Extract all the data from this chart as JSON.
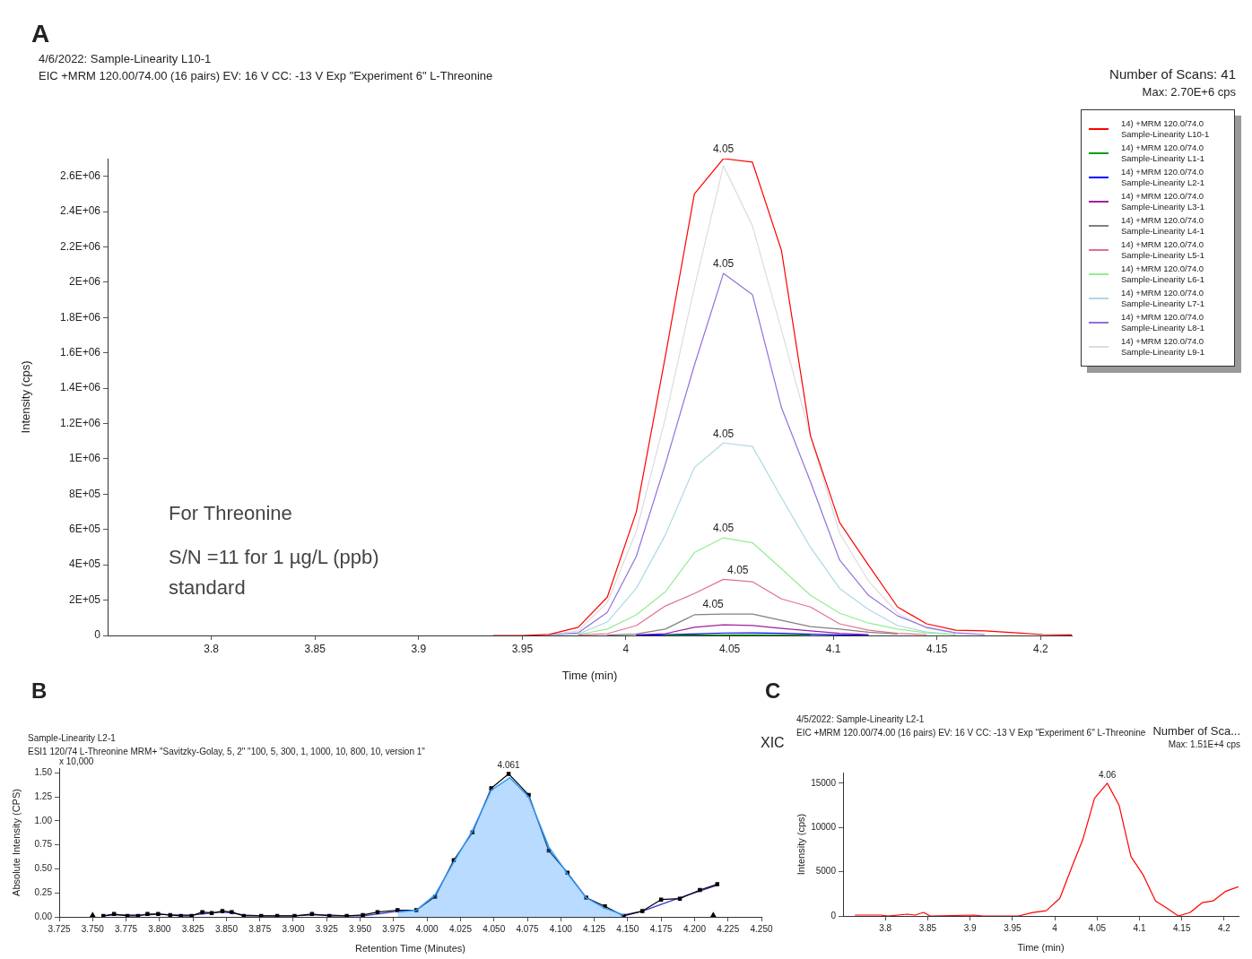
{
  "chart_data": [
    {
      "type": "line",
      "title": "4/6/2022: Sample-Linearity L10-1",
      "subtitle": "EIC +MRM 120.00/74.00 (16 pairs) EV: 16 V CC: -13 V Exp \"Experiment 6\" L-Threonine",
      "xlabel": "Time (min)",
      "ylabel": "Intensity (cps)",
      "legend": "top right",
      "annotations": [
        "A",
        "Number of Scans: 41",
        "Max: 2.70E+6 cps",
        "For Threonine",
        "S/N =11 for 1 µg/L (ppb) standard",
        {
          "text": "4.05",
          "x": 4.047,
          "y": 2700000
        },
        {
          "text": "4.05",
          "x": 4.047,
          "y": 2050000
        },
        {
          "text": "4.05",
          "x": 4.047,
          "y": 1090000
        },
        {
          "text": "4.05",
          "x": 4.047,
          "y": 553000
        },
        {
          "text": "4.05",
          "x": 4.054,
          "y": 318000
        },
        {
          "text": "4.05",
          "x": 4.042,
          "y": 121000
        }
      ],
      "x": [
        3.936,
        3.95,
        3.963,
        3.977,
        3.991,
        4.005,
        4.019,
        4.033,
        4.047,
        4.061,
        4.075,
        4.089,
        4.103,
        4.117,
        4.131,
        4.145,
        4.159,
        4.173,
        4.187,
        4.201,
        4.215
      ],
      "xlim": [
        3.75,
        4.215
      ],
      "xticks": [
        3.8,
        3.85,
        3.9,
        3.95,
        4,
        4.05,
        4.1,
        4.15,
        4.2
      ],
      "ylim": [
        0,
        2700000
      ],
      "yticks": [
        0,
        {
          "value": 200000,
          "label": "2E+05"
        },
        {
          "value": 400000,
          "label": "4E+05"
        },
        {
          "value": 600000,
          "label": "6E+05"
        },
        {
          "value": 800000,
          "label": "8E+05"
        },
        {
          "value": 1000000,
          "label": "1E+06"
        },
        {
          "value": 1200000,
          "label": "1.2E+06"
        },
        {
          "value": 1400000,
          "label": "1.4E+06"
        },
        {
          "value": 1600000,
          "label": "1.6E+06"
        },
        {
          "value": 1800000,
          "label": "1.8E+06"
        },
        {
          "value": 2000000,
          "label": "2E+06"
        },
        {
          "value": 2200000,
          "label": "2.2E+06"
        },
        {
          "value": 2400000,
          "label": "2.4E+06"
        },
        {
          "value": 2600000,
          "label": "2.6E+06"
        }
      ],
      "series": [
        {
          "name": "14) +MRM 120.0/74.0\nSample-Linearity L10-1",
          "color": "#ff0000",
          "values": [
            0,
            0,
            6000,
            46000,
            217000,
            700000,
            1580000,
            2500000,
            2700000,
            2680000,
            2180000,
            1130000,
            640000,
            398000,
            161000,
            66000,
            30000,
            26000,
            16000,
            5000,
            3000
          ]
        },
        {
          "name": "14) +MRM 120.0/74.0\nSample-Linearity L1-1",
          "color": "#00a000",
          "values": [
            null,
            null,
            null,
            null,
            null,
            null,
            1000,
            2000,
            3000,
            3000,
            2000,
            1000,
            null,
            null,
            null,
            null,
            null,
            null,
            null,
            null,
            null
          ]
        },
        {
          "name": "14) +MRM 120.0/74.0\nSample-Linearity L2-1",
          "color": "#0000ff",
          "values": [
            null,
            null,
            null,
            null,
            null,
            1000,
            4000,
            8000,
            14000,
            15000,
            12000,
            7000,
            3000,
            1000,
            null,
            null,
            null,
            null,
            null,
            null,
            null
          ]
        },
        {
          "name": "14) +MRM 120.0/74.0\nSample-Linearity L3-1",
          "color": "#a020a0",
          "values": [
            null,
            null,
            null,
            null,
            null,
            3000,
            10000,
            46000,
            60000,
            56000,
            40000,
            26000,
            12000,
            5000,
            null,
            null,
            null,
            null,
            null,
            null,
            null
          ]
        },
        {
          "name": "14) +MRM 120.0/74.0\nSample-Linearity L4-1",
          "color": "#808080",
          "values": [
            null,
            null,
            null,
            null,
            2000,
            8000,
            36000,
            117000,
            121000,
            121000,
            86000,
            50000,
            36000,
            18000,
            8000,
            null,
            null,
            null,
            null,
            null,
            null
          ]
        },
        {
          "name": "14) +MRM 120.0/74.0\nSample-Linearity L5-1",
          "color": "#e07090",
          "values": [
            null,
            null,
            null,
            3000,
            10000,
            56000,
            167000,
            237000,
            318000,
            304000,
            207000,
            161000,
            66000,
            30000,
            12000,
            5000,
            null,
            null,
            null,
            null,
            null
          ]
        },
        {
          "name": "14) +MRM 120.0/74.0\nSample-Linearity L6-1",
          "color": "#90ee90",
          "values": [
            null,
            null,
            null,
            5000,
            36000,
            117000,
            247000,
            469000,
            553000,
            525000,
            378000,
            227000,
            127000,
            70000,
            36000,
            15000,
            5000,
            null,
            null,
            null,
            null
          ]
        },
        {
          "name": "14) +MRM 120.0/74.0\nSample-Linearity L7-1",
          "color": "#add8e6",
          "values": [
            null,
            null,
            2000,
            8000,
            76000,
            267000,
            569000,
            951000,
            1090000,
            1070000,
            780000,
            499000,
            267000,
            147000,
            56000,
            20000,
            6000,
            null,
            null,
            null,
            null
          ]
        },
        {
          "name": "14) +MRM 120.0/74.0\nSample-Linearity L8-1",
          "color": "#9370db",
          "values": [
            null,
            null,
            3000,
            15000,
            131000,
            448000,
            970000,
            1530000,
            2050000,
            1930000,
            1290000,
            870000,
            428000,
            227000,
            111000,
            46000,
            15000,
            5000,
            null,
            null,
            null
          ]
        },
        {
          "name": "14) +MRM 120.0/74.0\nSample-Linearity L9-1",
          "color": "#dcdcdc",
          "values": [
            null,
            null,
            5000,
            26000,
            187000,
            590000,
            1230000,
            1970000,
            2660000,
            2320000,
            1730000,
            1130000,
            580000,
            308000,
            127000,
            40000,
            15000,
            5000,
            null,
            null,
            null
          ]
        }
      ]
    },
    {
      "type": "line",
      "title": "Sample-Linearity L2-1",
      "subtitle": "ESI1 120/74 L-Threonine MRM+ \"Savitzky-Golay, 5, 2\" \"100, 5, 300, 1, 1000, 10, 800, 10, version 1\"",
      "xlabel": "Retention Time (Minutes)",
      "ylabel": "Absolute Intensity (CPS)",
      "annotations": [
        "B",
        "x 10,000",
        {
          "text": "4.061",
          "x": 4.061,
          "y": 1.49
        }
      ],
      "xlim": [
        3.725,
        4.25
      ],
      "xticks": [
        {
          "value": 3.725,
          "label": "3.725"
        },
        {
          "value": 3.75,
          "label": "3.750"
        },
        {
          "value": 3.775,
          "label": "3.775"
        },
        {
          "value": 3.8,
          "label": "3.800"
        },
        {
          "value": 3.825,
          "label": "3.825"
        },
        {
          "value": 3.85,
          "label": "3.850"
        },
        {
          "value": 3.875,
          "label": "3.875"
        },
        {
          "value": 3.9,
          "label": "3.900"
        },
        {
          "value": 3.925,
          "label": "3.925"
        },
        {
          "value": 3.95,
          "label": "3.950"
        },
        {
          "value": 3.975,
          "label": "3.975"
        },
        {
          "value": 4,
          "label": "4.000"
        },
        {
          "value": 4.025,
          "label": "4.025"
        },
        {
          "value": 4.05,
          "label": "4.050"
        },
        {
          "value": 4.075,
          "label": "4.075"
        },
        {
          "value": 4.1,
          "label": "4.100"
        },
        {
          "value": 4.125,
          "label": "4.125"
        },
        {
          "value": 4.15,
          "label": "4.150"
        },
        {
          "value": 4.175,
          "label": "4.175"
        },
        {
          "value": 4.2,
          "label": "4.200"
        },
        {
          "value": 4.225,
          "label": "4.225"
        },
        {
          "value": 4.25,
          "label": "4.250"
        }
      ],
      "ylim": [
        0,
        1.55
      ],
      "yticks": [
        {
          "value": 0,
          "label": "0.00"
        },
        {
          "value": 0.25,
          "label": "0.25"
        },
        {
          "value": 0.5,
          "label": "0.50"
        },
        {
          "value": 0.75,
          "label": "0.75"
        },
        {
          "value": 1,
          "label": "1.00"
        },
        {
          "value": 1.25,
          "label": "1.25"
        },
        {
          "value": 1.5,
          "label": "1.50"
        }
      ],
      "series": [
        {
          "type": "area",
          "color": "#3399ff",
          "x": [
            3.978,
            3.992,
            4.006,
            4.02,
            4.034,
            4.048,
            4.062,
            4.076,
            4.091,
            4.105,
            4.119,
            4.133,
            4.147
          ],
          "values": [
            0.05,
            0.07,
            0.23,
            0.57,
            0.9,
            1.32,
            1.45,
            1.25,
            0.73,
            0.45,
            0.2,
            0.09,
            0.02
          ]
        },
        {
          "type": "line",
          "color": "#000000",
          "marker": "square",
          "x": [
            3.758,
            3.766,
            3.776,
            3.784,
            3.791,
            3.799,
            3.808,
            3.816,
            3.824,
            3.832,
            3.839,
            3.847,
            3.854,
            3.863,
            3.876,
            3.888,
            3.901,
            3.914,
            3.927,
            3.94,
            3.952,
            3.963,
            3.978,
            3.992,
            4.006,
            4.02,
            4.034,
            4.048,
            4.061,
            4.076,
            4.091,
            4.105,
            4.119,
            4.133,
            4.147,
            4.161,
            4.175,
            4.189,
            4.204,
            4.217
          ],
          "values": [
            0.01,
            0.03,
            0.01,
            0.01,
            0.03,
            0.03,
            0.02,
            0.01,
            0.01,
            0.05,
            0.04,
            0.06,
            0.05,
            0.01,
            0.01,
            0.01,
            0.01,
            0.03,
            0.01,
            0.01,
            0.02,
            0.05,
            0.07,
            0.07,
            0.21,
            0.59,
            0.88,
            1.34,
            1.49,
            1.27,
            0.69,
            0.46,
            0.2,
            0.11,
            0.01,
            0.06,
            0.18,
            0.19,
            0.28,
            0.34
          ]
        },
        {
          "type": "line",
          "color": "#3333cc",
          "x": [
            3.758,
            3.766,
            3.776,
            3.784,
            3.791,
            3.799,
            3.808,
            3.816,
            3.824,
            3.832,
            3.839,
            3.847,
            3.854,
            3.863,
            3.876,
            3.888,
            3.901,
            3.914,
            3.927,
            3.94,
            3.952,
            3.963,
            3.978,
            3.992,
            4.07,
            4.147,
            4.161,
            4.175,
            4.189,
            4.204,
            4.217
          ],
          "values": [
            0.01,
            0.02,
            0.02,
            0.02,
            0.02,
            0.03,
            0.02,
            0.02,
            0.02,
            0.03,
            0.04,
            0.05,
            0.04,
            0.02,
            0.01,
            0.01,
            0.01,
            0.02,
            0.02,
            0.01,
            0.01,
            0.03,
            0.06,
            0.07,
            null,
            0.02,
            0.06,
            0.13,
            0.2,
            0.27,
            0.33
          ]
        },
        {
          "type": "scatter",
          "color": "#000000",
          "marker": "triangle",
          "x": [
            3.75,
            4.214
          ],
          "values": [
            0,
            0
          ]
        }
      ]
    },
    {
      "type": "line",
      "title": "4/5/2022: Sample-Linearity L2-1",
      "subtitle": "EIC +MRM 120.00/74.00 (16 pairs) EV: 16 V CC: -13 V Exp \"Experiment 6\" L-Threonine",
      "xlabel": "Time (min)",
      "ylabel": "Intensity (cps)",
      "annotations": [
        "C",
        "XIC",
        "Number of Sca...",
        "Max: 1.51E+4 cps",
        {
          "text": "4.06",
          "x": 4.062,
          "y": 15000
        }
      ],
      "xlim": [
        3.75,
        4.217
      ],
      "xticks": [
        3.8,
        3.85,
        3.9,
        3.95,
        4,
        4.05,
        4.1,
        4.15,
        4.2
      ],
      "ylim": [
        0,
        16200
      ],
      "yticks": [
        0,
        5000,
        10000,
        15000
      ],
      "series": [
        {
          "color": "#ff0000",
          "x": [
            3.764,
            3.794,
            3.803,
            3.826,
            3.835,
            3.845,
            3.853,
            3.905,
            3.915,
            3.957,
            3.974,
            3.99,
            4.006,
            4.02,
            4.033,
            4.047,
            4.062,
            4.076,
            4.09,
            4.104,
            4.119,
            4.132,
            4.146,
            4.16,
            4.174,
            4.187,
            4.202,
            4.217
          ],
          "values": [
            100,
            100,
            0,
            200,
            100,
            400,
            0,
            100,
            0,
            0,
            400,
            600,
            2000,
            5500,
            8600,
            13300,
            15000,
            12500,
            6700,
            4700,
            1700,
            900,
            0,
            400,
            1500,
            1700,
            2800,
            3300
          ]
        }
      ]
    }
  ]
}
